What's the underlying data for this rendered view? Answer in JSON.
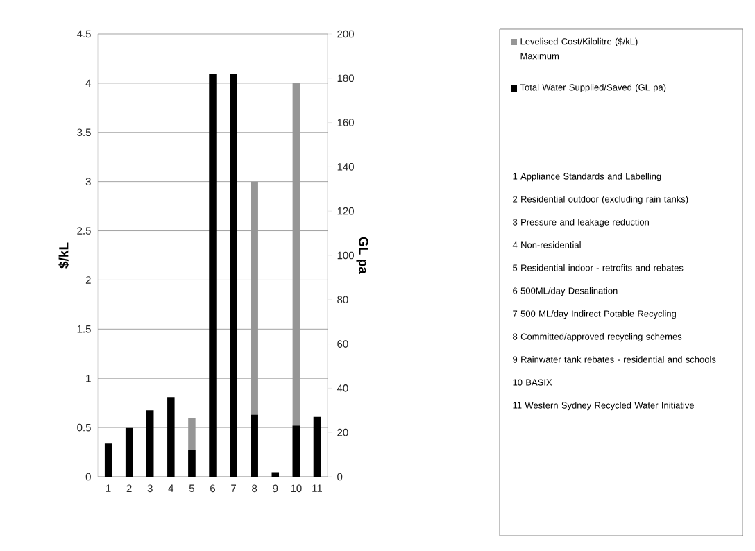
{
  "chart_data": {
    "type": "bar",
    "categories": [
      "1",
      "2",
      "3",
      "4",
      "5",
      "6",
      "7",
      "8",
      "9",
      "10",
      "11"
    ],
    "series": [
      {
        "name": "Levelised Cost/Kilolitre ($/kL) Maximum",
        "color": "#969696",
        "values": [
          null,
          null,
          null,
          null,
          0.6,
          null,
          null,
          3.0,
          null,
          4.0,
          null
        ]
      },
      {
        "name": "Total Water Supplied/Saved (GL pa)",
        "color": "#000000",
        "axis": "y2",
        "values": [
          15,
          22,
          30,
          36,
          12,
          182,
          182,
          28,
          2,
          23,
          27
        ]
      }
    ],
    "ylabel": "$/kL",
    "y2label": "GL pa",
    "ylim": [
      0,
      4.5
    ],
    "yticks": [
      0,
      0.5,
      1,
      1.5,
      2,
      2.5,
      3,
      3.5,
      4,
      4.5
    ],
    "y2lim": [
      0,
      200
    ],
    "y2ticks": [
      0,
      20,
      40,
      60,
      80,
      100,
      120,
      140,
      160,
      180,
      200
    ],
    "grid": "y",
    "legend": "right",
    "annotations": [
      "1 Appliance Standards and Labelling",
      "2 Residential outdoor (excluding rain tanks)",
      "3 Pressure and leakage reduction",
      "4 Non-residential",
      "5 Residential indoor - retrofits and rebates",
      "6 500ML/day Desalination",
      "7 500 ML/day Indirect Potable Recycling",
      "8 Committed/approved recycling schemes",
      "9 Rainwater tank rebates - residential and schools",
      "10 BASIX",
      "11 Western Sydney Recycled Water Initiative"
    ]
  }
}
